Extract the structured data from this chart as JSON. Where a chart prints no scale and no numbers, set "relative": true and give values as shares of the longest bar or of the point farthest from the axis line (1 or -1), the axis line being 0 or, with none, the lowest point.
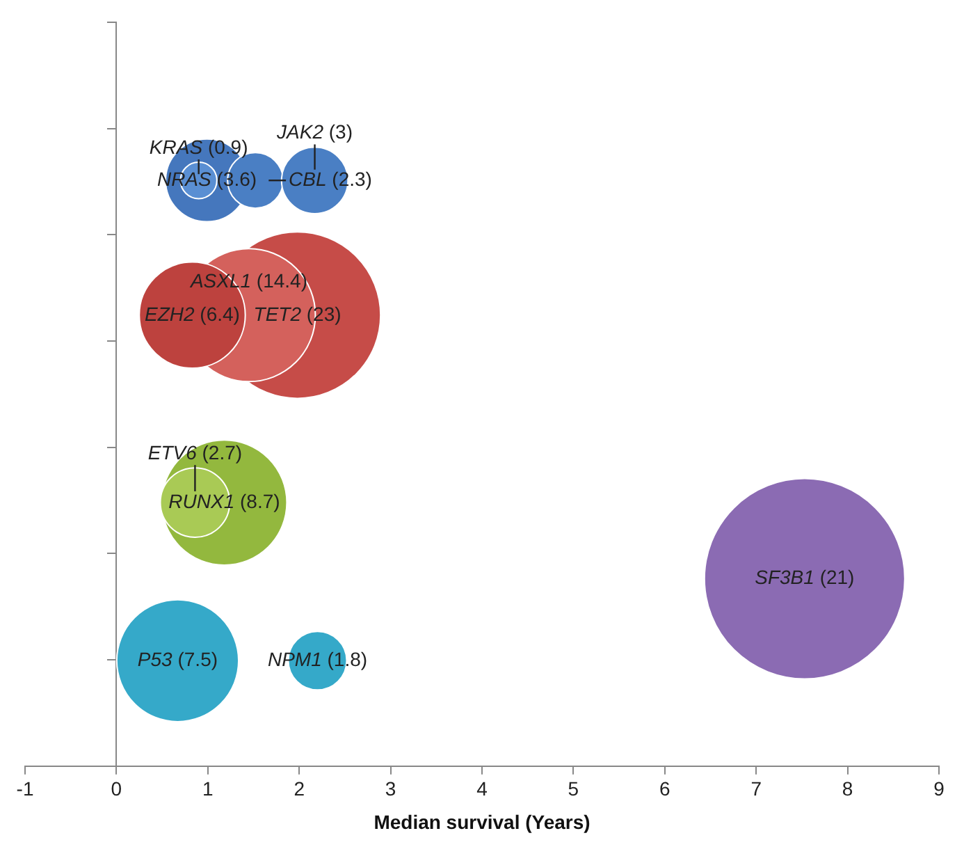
{
  "chart_data": {
    "type": "bubble",
    "xlabel": "Median survival (Years)",
    "relative": true,
    "x": [
      1.98,
      1.45,
      0.83,
      0.99,
      0.9,
      1.52,
      2.17,
      1.18,
      0.86,
      7.53,
      0.67,
      2.2
    ],
    "values": [
      0.77,
      0.77,
      0.77,
      1,
      1,
      1,
      1,
      0.45,
      0.45,
      0.32,
      0.18,
      0.18
    ],
    "sizes": [
      0.69,
      0.44,
      0.28,
      0.17,
      0.033,
      0.077,
      0.11,
      0.39,
      0.12,
      1,
      0.37,
      0.085
    ],
    "colors": [
      "#c64c48",
      "#d4615c",
      "#bd423e",
      "#4577bd",
      "#5a8fd3",
      "#4a7fc4",
      "#4a7fc4",
      "#93b83e",
      "#a9ca55",
      "#8b6bb3",
      "#35a9c9",
      "#35a9c9"
    ],
    "annotations": [
      {
        "text": "TET2 (23)",
        "x": 1.98,
        "y": 0.77
      },
      {
        "text": "ASXL1 (14.4)",
        "x": 1.45,
        "y": 0.77
      },
      {
        "text": "EZH2 (6.4)",
        "x": 0.83,
        "y": 0.77
      },
      {
        "text": "NRAS (3.6)",
        "x": 0.99,
        "y": 1
      },
      {
        "text": "KRAS (0.9)",
        "x": 0.9,
        "y": 1
      },
      {
        "text": "CBL (2.3)",
        "x": 1.52,
        "y": 1
      },
      {
        "text": "JAK2 (3)",
        "x": 2.17,
        "y": 1
      },
      {
        "text": "RUNX1 (8.7)",
        "x": 1.18,
        "y": 0.45
      },
      {
        "text": "ETV6 (2.7)",
        "x": 0.86,
        "y": 0.45
      },
      {
        "text": "SF3B1 (21)",
        "x": 7.53,
        "y": 0.32
      },
      {
        "text": "P53 (7.5)",
        "x": 0.67,
        "y": 0.18
      },
      {
        "text": "NPM1 (1.8)",
        "x": 2.2,
        "y": 0.18
      }
    ],
    "xlim": [
      -1,
      9
    ],
    "xticks": [
      -1,
      0,
      1,
      2,
      3,
      4,
      5,
      6,
      7,
      8,
      9
    ],
    "legend": false
  }
}
